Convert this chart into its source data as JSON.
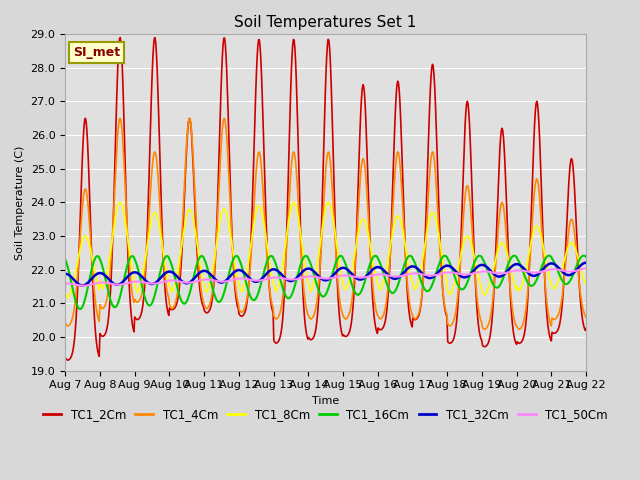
{
  "title": "Soil Temperatures Set 1",
  "xlabel": "Time",
  "ylabel": "Soil Temperature (C)",
  "ylim": [
    19.0,
    29.0
  ],
  "yticks": [
    19.0,
    20.0,
    21.0,
    22.0,
    23.0,
    24.0,
    25.0,
    26.0,
    27.0,
    28.0,
    29.0
  ],
  "xtick_labels": [
    "Aug 7",
    "Aug 8",
    "Aug 9",
    "Aug 10",
    "Aug 11",
    "Aug 12",
    "Aug 13",
    "Aug 14",
    "Aug 15",
    "Aug 16",
    "Aug 17",
    "Aug 18",
    "Aug 19",
    "Aug 20",
    "Aug 21",
    "Aug 22"
  ],
  "series_colors": [
    "#cc0000",
    "#ff8800",
    "#ffff00",
    "#00cc00",
    "#0000cc",
    "#ff88ff"
  ],
  "series_names": [
    "TC1_2Cm",
    "TC1_4Cm",
    "TC1_8Cm",
    "TC1_16Cm",
    "TC1_32Cm",
    "TC1_50Cm"
  ],
  "background_color": "#d8d8d8",
  "plot_bg_color": "#e0e0e0",
  "annotation_text": "SI_met",
  "annotation_bg": "#ffffcc",
  "annotation_border": "#999900",
  "annotation_text_color": "#880000",
  "grid_color": "#ffffff",
  "title_fontsize": 11,
  "axis_fontsize": 8,
  "legend_fontsize": 8.5
}
